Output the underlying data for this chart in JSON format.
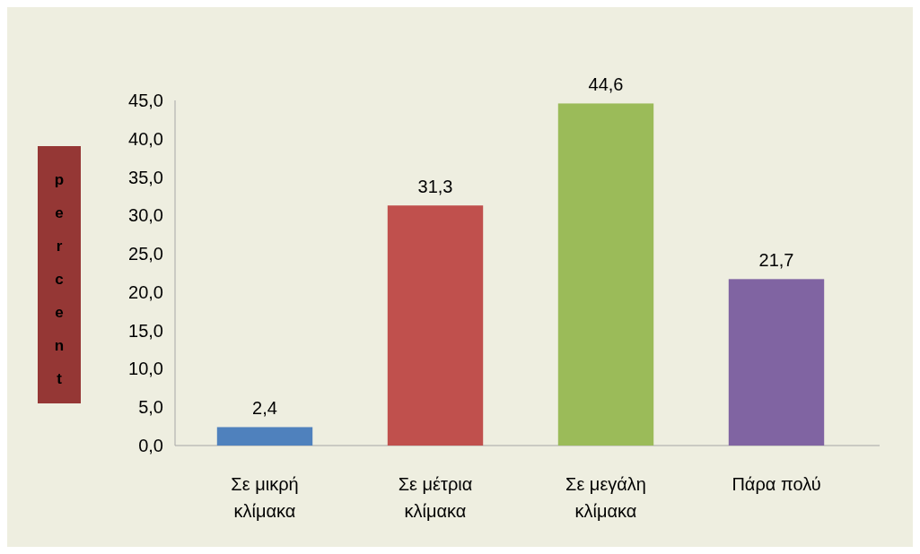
{
  "chart_data": {
    "type": "bar",
    "ylabel": "percent",
    "categories": [
      "Σε μικρή κλίμακα",
      "Σε μέτρια κλίμακα",
      "Σε μεγάλη κλίμακα",
      "Πάρα πολύ"
    ],
    "values": [
      2.4,
      31.3,
      44.6,
      21.7
    ],
    "colors": [
      "#4f81bd",
      "#c0504d",
      "#9bbb59",
      "#8064a2"
    ],
    "value_labels": [
      "2,4",
      "31,3",
      "44,6",
      "21,7"
    ],
    "ylim": [
      0,
      45
    ],
    "yticks": [
      {
        "value": 0,
        "label": "0,0"
      },
      {
        "value": 5,
        "label": "5,0"
      },
      {
        "value": 10,
        "label": "10,0"
      },
      {
        "value": 15,
        "label": "15,0"
      },
      {
        "value": 20,
        "label": "20,0"
      },
      {
        "value": 25,
        "label": "25,0"
      },
      {
        "value": 30,
        "label": "30,0"
      },
      {
        "value": 35,
        "label": "35,0"
      },
      {
        "value": 40,
        "label": "40,0"
      },
      {
        "value": 45,
        "label": "45,0"
      }
    ]
  }
}
